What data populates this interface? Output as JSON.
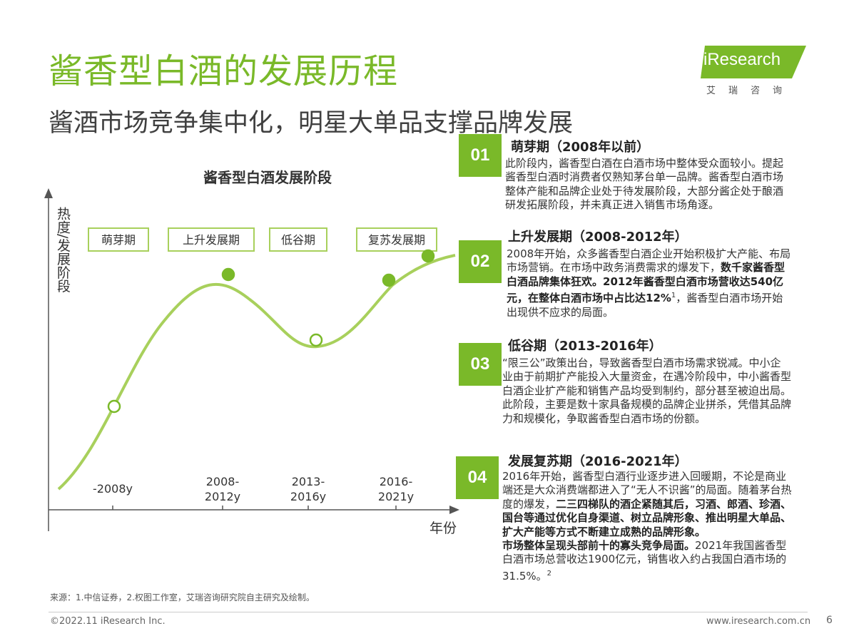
{
  "header": {
    "title": "酱香型白酒的发展历程",
    "subtitle": "酱酒市场竞争集中化，明星大单品支撑品牌发展"
  },
  "logo": {
    "main": "iResearch",
    "sub": "艾瑞咨询",
    "colors": {
      "brand": "#7ab929"
    }
  },
  "chart_data": {
    "type": "line",
    "title": "酱香型白酒发展阶段",
    "ylabel": "热度/发展阶段",
    "xlabel": "年份",
    "categories": [
      "-2008y",
      "2008-2012y",
      "2013-2016y",
      "2016-2021y"
    ],
    "stage_labels": [
      "萌芽期",
      "上升发展期",
      "低谷期",
      "复苏发展期"
    ],
    "grid": false,
    "line_color": "#a8d05c",
    "marker_color": "#7ab929"
  },
  "sections": [
    {
      "number": "01",
      "title": "萌芽期（2008年以前）",
      "body": [
        {
          "t": "此阶段内，酱香型白酒在白酒市场中整体受众面较小。提起酱香型白酒时消费者仅熟知茅台单一品牌。酱香型白酒市场整体产能和品牌企业处于待发展阶段，大部分酱企处于酿酒研发拓展阶段，并未真正进入销售市场角逐。",
          "b": false
        }
      ]
    },
    {
      "number": "02",
      "title": "上升发展期（2008-2012年）",
      "body": [
        {
          "t": "2008年开始，众多酱香型白酒企业开始积极扩大产能、布局市场营销。在市场中政务消费需求的爆发下，",
          "b": false
        },
        {
          "t": "数千家酱香型白酒品牌集体狂欢。2012年酱香型白酒市场营收达540亿元，在整体白酒市场中占比达12%",
          "b": true
        },
        {
          "t": "1",
          "b": false,
          "sup": true
        },
        {
          "t": "，酱香型白酒市场开始出现供不应求的局面。",
          "b": false
        }
      ]
    },
    {
      "number": "03",
      "title": "低谷期（2013-2016年）",
      "body": [
        {
          "t": "“限三公”政策出台，导致酱香型白酒市场需求锐减。中小企业由于前期扩产能投入大量资金，在遇冷阶段中，中小酱香型白酒企业扩产能和销售产品均受到制约，部分甚至被迫出局。",
          "b": false
        },
        {
          "t": "\n",
          "b": false
        },
        {
          "t": "此阶段，主要是数十家具备规模的品牌企业拼杀，凭借其品牌力和规模化，争取酱香型白酒市场的份额。",
          "b": false
        }
      ]
    },
    {
      "number": "04",
      "title": "发展复苏期（2016-2021年）",
      "body": [
        {
          "t": "2016年开始，酱香型白酒行业逐步进入回暖期，不论是商业端还是大众消费端都进入了“无人不识酱”的局面。随着茅台热度的爆发，",
          "b": false
        },
        {
          "t": "二三四梯队的酒企紧随其后，习酒、郎酒、珍酒、国台等通过优化自身渠道、树立品牌形象、推出明星大单品、扩大产能等方式不断建立成熟的品牌形象。",
          "b": true
        },
        {
          "t": "\n",
          "b": false
        },
        {
          "t": "市场整体呈现头部前十的寡头竞争局面。",
          "b": true
        },
        {
          "t": "2021年我国酱香型白酒市场总营收达1900亿元，销售收入约占我国白酒市场的31.5%。",
          "b": false
        },
        {
          "t": "2",
          "b": false,
          "sup": true
        }
      ]
    }
  ],
  "footer": {
    "source": "来源：1.中信证券，2.权图工作室，艾瑞咨询研究院自主研究及绘制。",
    "copyright": "©2022.11  iResearch Inc.",
    "website": "www.iresearch.com.cn",
    "page": "6"
  }
}
